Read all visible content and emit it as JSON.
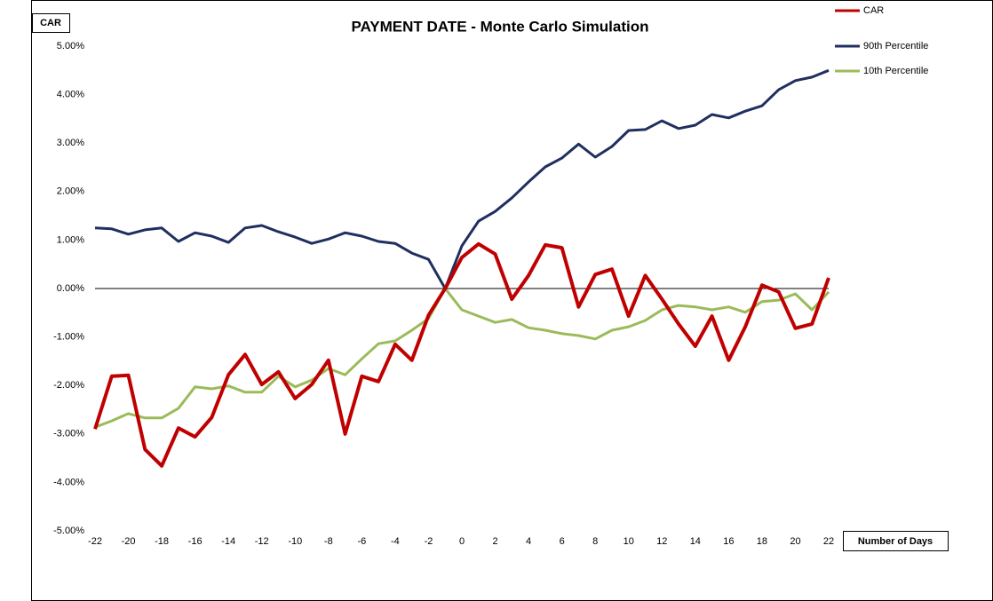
{
  "chart_data": {
    "type": "line",
    "title": "PAYMENT DATE - Monte Carlo Simulation",
    "y_label": "CAR",
    "x_label": "Number of Days",
    "x": [
      -22,
      -21,
      -20,
      -19,
      -18,
      -17,
      -16,
      -15,
      -14,
      -13,
      -12,
      -11,
      -10,
      -9,
      -8,
      -7,
      -6,
      -5,
      -4,
      -3,
      -2,
      -1,
      0,
      1,
      2,
      3,
      4,
      5,
      6,
      7,
      8,
      9,
      10,
      11,
      12,
      13,
      14,
      15,
      16,
      17,
      18,
      19,
      20,
      21,
      22
    ],
    "series": [
      {
        "name": "CAR",
        "color": "#c00000",
        "values": [
          -2.9,
          -1.81,
          -1.79,
          -3.32,
          -3.66,
          -2.88,
          -3.06,
          -2.66,
          -1.78,
          -1.36,
          -1.98,
          -1.72,
          -2.27,
          -1.98,
          -1.48,
          -3.0,
          -1.81,
          -1.92,
          -1.15,
          -1.48,
          -0.55,
          0,
          0.64,
          0.92,
          0.71,
          -0.22,
          0.27,
          0.9,
          0.84,
          -0.38,
          0.29,
          0.4,
          -0.57,
          0.27,
          -0.22,
          -0.73,
          -1.19,
          -0.57,
          -1.48,
          -0.79,
          0.07,
          -0.07,
          -0.82,
          -0.73,
          0.22
        ]
      },
      {
        "name": "90th Percentile",
        "color": "#1f2f5f",
        "values": [
          1.25,
          1.23,
          1.12,
          1.21,
          1.25,
          0.97,
          1.15,
          1.08,
          0.95,
          1.25,
          1.3,
          1.17,
          1.06,
          0.93,
          1.02,
          1.15,
          1.08,
          0.97,
          0.93,
          0.73,
          0.6,
          0,
          0.88,
          1.39,
          1.59,
          1.87,
          2.2,
          2.51,
          2.69,
          2.98,
          2.71,
          2.93,
          3.26,
          3.28,
          3.46,
          3.3,
          3.37,
          3.59,
          3.52,
          3.66,
          3.77,
          4.1,
          4.29,
          4.36,
          4.5
        ]
      },
      {
        "name": "10th Percentile",
        "color": "#9bbb59",
        "values": [
          -2.86,
          -2.73,
          -2.58,
          -2.67,
          -2.67,
          -2.47,
          -2.03,
          -2.07,
          -2.01,
          -2.14,
          -2.14,
          -1.81,
          -2.03,
          -1.89,
          -1.65,
          -1.78,
          -1.45,
          -1.14,
          -1.08,
          -0.86,
          -0.62,
          0,
          -0.44,
          -0.57,
          -0.7,
          -0.64,
          -0.81,
          -0.86,
          -0.93,
          -0.97,
          -1.04,
          -0.86,
          -0.79,
          -0.66,
          -0.44,
          -0.35,
          -0.38,
          -0.44,
          -0.38,
          -0.49,
          -0.27,
          -0.24,
          -0.11,
          -0.44,
          -0.07
        ]
      }
    ],
    "xlim": [
      -22,
      22
    ],
    "xticks": [
      -22,
      -20,
      -18,
      -16,
      -14,
      -12,
      -10,
      -8,
      -6,
      -4,
      -2,
      0,
      2,
      4,
      6,
      8,
      10,
      12,
      14,
      16,
      18,
      20,
      22
    ],
    "ylim": [
      -5,
      5
    ],
    "yticks": [
      {
        "value": -5,
        "label": "-5.00%"
      },
      {
        "value": -4,
        "label": "-4.00%"
      },
      {
        "value": -3,
        "label": "-3.00%"
      },
      {
        "value": -2,
        "label": "-2.00%"
      },
      {
        "value": -1,
        "label": "-1.00%"
      },
      {
        "value": 0,
        "label": "0.00%"
      },
      {
        "value": 1,
        "label": "1.00%"
      },
      {
        "value": 2,
        "label": "2.00%"
      },
      {
        "value": 3,
        "label": "3.00%"
      },
      {
        "value": 4,
        "label": "4.00%"
      },
      {
        "value": 5,
        "label": "5.00%"
      }
    ],
    "grid": false,
    "legend": "top-right"
  }
}
